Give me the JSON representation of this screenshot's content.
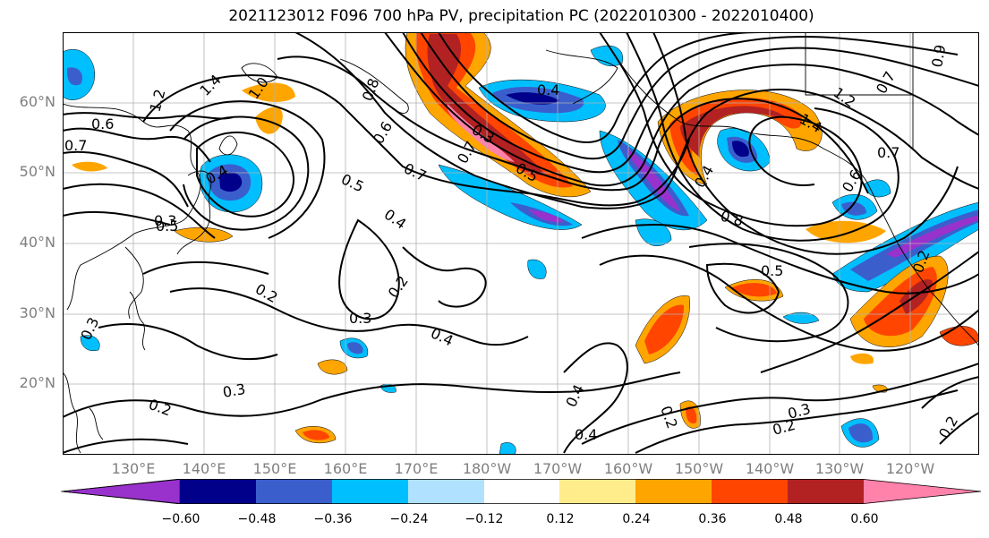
{
  "title": "2021123012 F096 700 hPa PV, precipitation PC (2022010300 - 2022010400)",
  "lat_labels": [
    "60°N",
    "50°N",
    "40°N",
    "30°N",
    "20°N"
  ],
  "lon_labels": [
    "130°E",
    "140°E",
    "150°E",
    "160°E",
    "170°E",
    "180°W",
    "170°W",
    "160°W",
    "150°W",
    "140°W",
    "130°W",
    "120°W"
  ],
  "contour_labels": [
    "0.6",
    "0.7",
    "1.2",
    "1.4",
    "1.0",
    "0.4",
    "0.3",
    "0.5",
    "0.6",
    "0.7",
    "0.4",
    "0.5",
    "0.2",
    "0.2",
    "0.3",
    "0.4",
    "0.3",
    "0.2",
    "0.4",
    "0.2",
    "0.3",
    "0.2",
    "0.3",
    "0.2",
    "0.8",
    "0.5",
    "0.4",
    "0.7",
    "0.3",
    "0.5",
    "0.8",
    "0.4",
    "1.2",
    "0.7",
    "0.6",
    "1.4",
    "0.7",
    "0.9",
    "0.4",
    "0.2"
  ],
  "colorbar": {
    "ticks": [
      "−0.60",
      "−0.48",
      "−0.36",
      "−0.24",
      "−0.12",
      "0.12",
      "0.24",
      "0.36",
      "0.48",
      "0.60"
    ],
    "colors": [
      "#9932cc",
      "#00008b",
      "#3a5fcd",
      "#00bfff",
      "#b0e2ff",
      "#ffffff",
      "#ffec8b",
      "#ffa500",
      "#ff4500",
      "#b22222",
      "#ff82ab"
    ]
  }
}
